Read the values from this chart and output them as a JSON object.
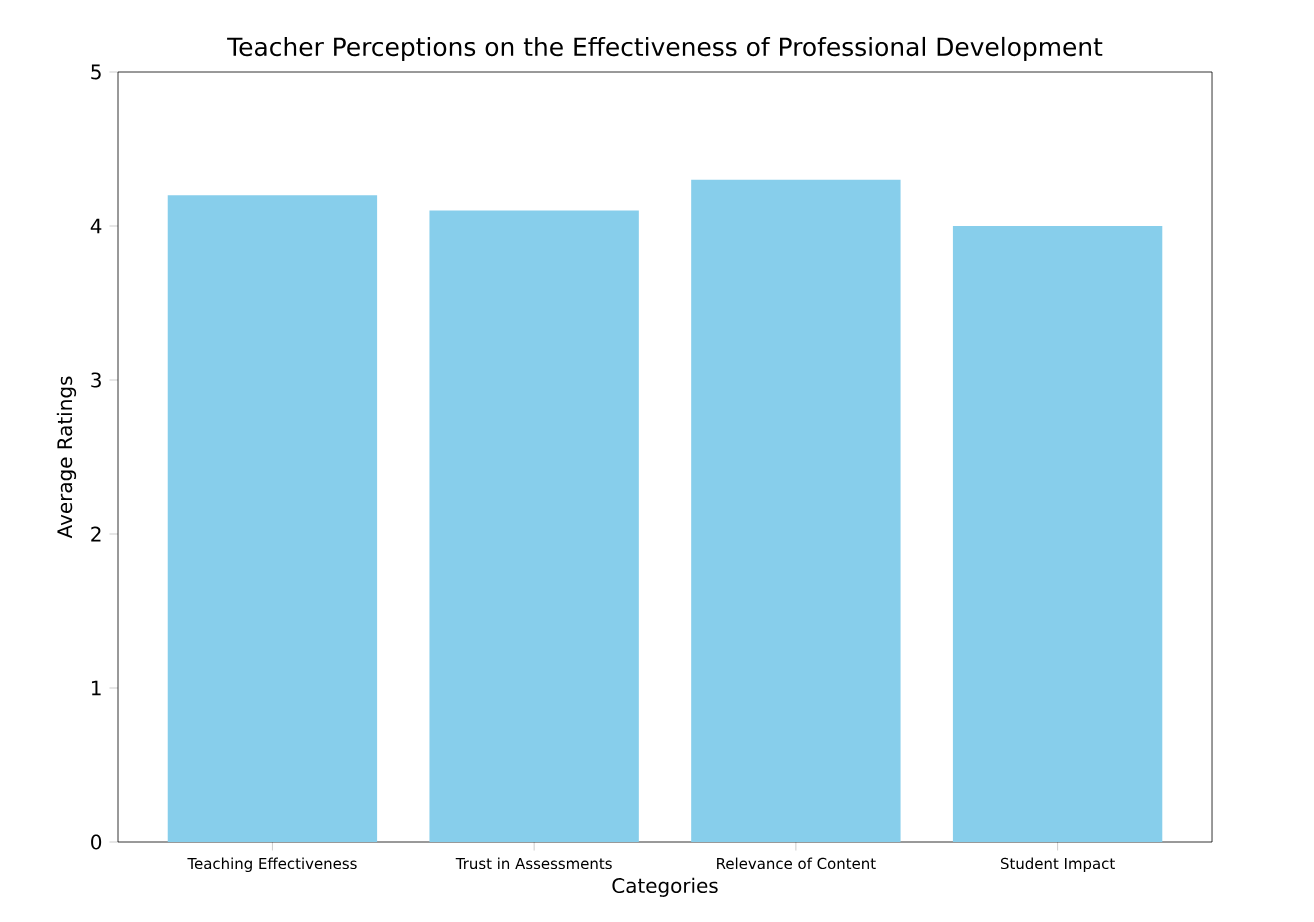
{
  "chart_data": {
    "type": "bar",
    "title": "Teacher Perceptions on the Effectiveness of Professional Development",
    "xlabel": "Categories",
    "ylabel": "Average Ratings",
    "categories": [
      "Teaching Effectiveness",
      "Trust in Assessments",
      "Relevance of Content",
      "Student Impact"
    ],
    "values": [
      4.2,
      4.1,
      4.3,
      4.0
    ],
    "color": "#87ceeb",
    "ylim": [
      0,
      5
    ],
    "yticks": [
      0,
      1,
      2,
      3,
      4,
      5
    ],
    "grid": false
  }
}
